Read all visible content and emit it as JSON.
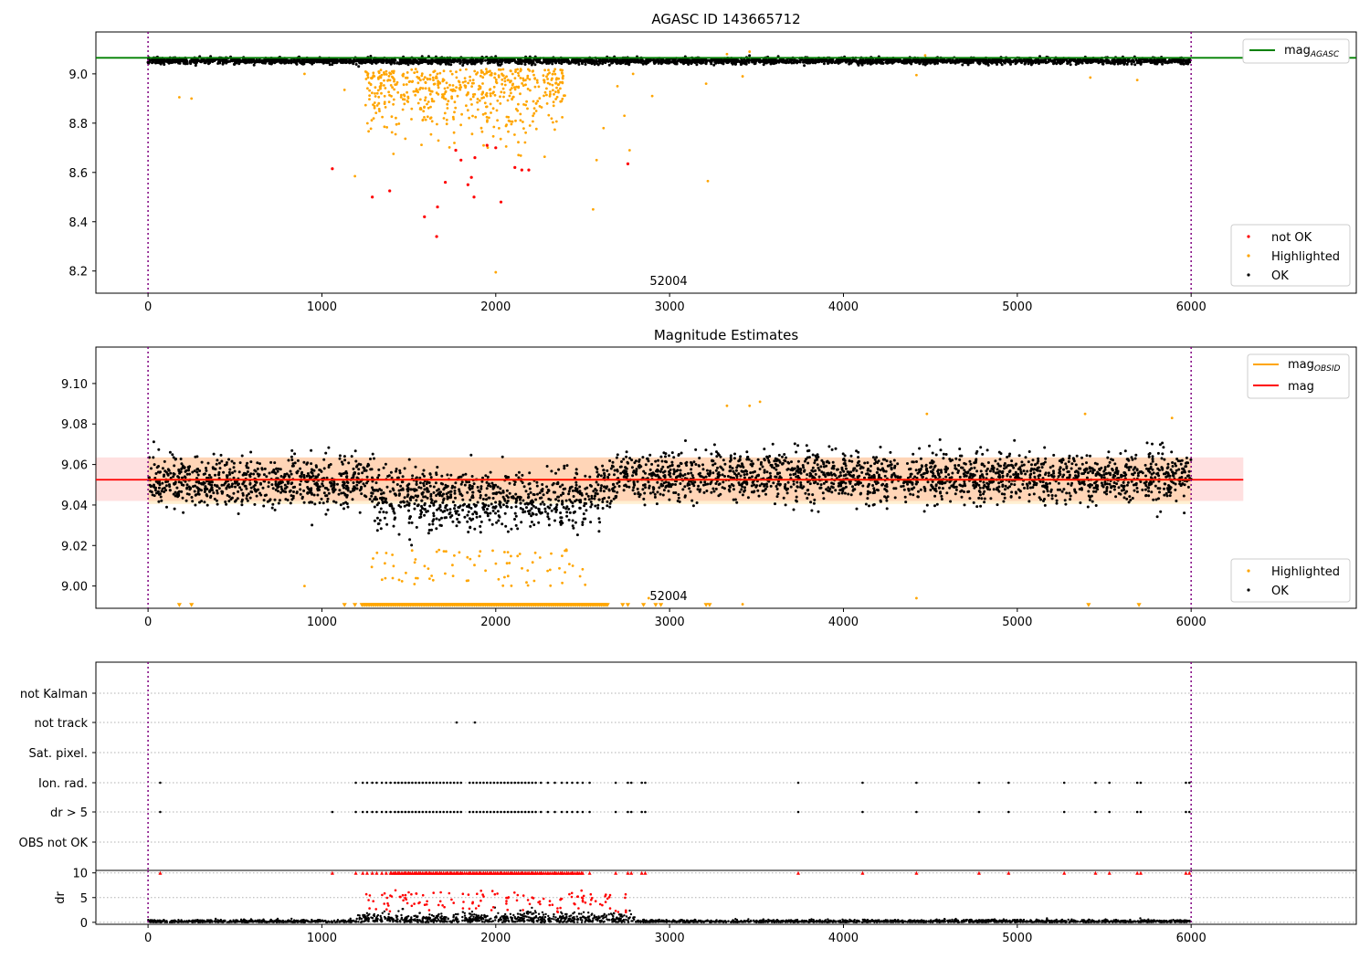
{
  "chart_data": [
    {
      "type": "scatter",
      "title": "AGASC ID 143665712",
      "xlim": [
        -300,
        6950
      ],
      "ylim": [
        8.11,
        9.17
      ],
      "xticks": [
        0,
        1000,
        2000,
        3000,
        4000,
        5000,
        6000
      ],
      "yticks": [
        8.2,
        8.4,
        8.6,
        8.8,
        9.0
      ],
      "ytick_labels": [
        "8.2",
        "8.4",
        "8.6",
        "8.8",
        "9.0"
      ],
      "grid": false,
      "obsid_label": "52004",
      "obsid_label_x": 3000,
      "obsid_boundaries": [
        0,
        6000
      ],
      "legend_upper": {
        "position": "upper-right",
        "entries": [
          {
            "label": "mag",
            "sub": "AGASC",
            "color": "#008000"
          }
        ]
      },
      "legend_lower": {
        "position": "lower-right",
        "entries": [
          {
            "label": "not OK",
            "color": "#ff0000"
          },
          {
            "label": "Highlighted",
            "color": "#ffa500"
          },
          {
            "label": "OK",
            "color": "#000000"
          }
        ]
      },
      "reference_lines": [
        {
          "name": "mag_AGASC",
          "y": 9.065,
          "x_range": [
            -300,
            6950
          ],
          "color": "#008000"
        }
      ],
      "series": [
        {
          "name": "OK",
          "color": "#000000",
          "description": "dense band of points, x 0-6000, y 9.03-9.08"
        },
        {
          "name": "Highlighted",
          "color": "#ffa500",
          "description": "scattered below band, mostly x 1200-2800, y 8.19-9.0"
        },
        {
          "name": "not OK",
          "color": "#ff0000",
          "points": [
            [
              1060,
              8.615
            ],
            [
              1290,
              8.5
            ],
            [
              1390,
              8.525
            ],
            [
              1590,
              8.42
            ],
            [
              1660,
              8.34
            ],
            [
              1665,
              8.46
            ],
            [
              1710,
              8.56
            ],
            [
              1770,
              8.69
            ],
            [
              1800,
              8.65
            ],
            [
              1840,
              8.55
            ],
            [
              1860,
              8.58
            ],
            [
              1875,
              8.5
            ],
            [
              1880,
              8.66
            ],
            [
              1950,
              8.71
            ],
            [
              2000,
              8.7
            ],
            [
              2030,
              8.48
            ],
            [
              2110,
              8.62
            ],
            [
              2150,
              8.61
            ],
            [
              2190,
              8.61
            ],
            [
              2760,
              8.635
            ]
          ]
        }
      ]
    },
    {
      "type": "scatter",
      "title": "Magnitude Estimates",
      "xlim": [
        -300,
        6950
      ],
      "ylim": [
        8.989,
        9.118
      ],
      "xticks": [
        0,
        1000,
        2000,
        3000,
        4000,
        5000,
        6000
      ],
      "yticks": [
        9.0,
        9.02,
        9.04,
        9.06,
        9.08,
        9.1
      ],
      "ytick_labels": [
        "9.00",
        "9.02",
        "9.04",
        "9.06",
        "9.08",
        "9.10"
      ],
      "grid": false,
      "obsid_label": "52004",
      "obsid_label_x": 3000,
      "obsid_boundaries": [
        0,
        6000
      ],
      "legend_upper": {
        "position": "upper-right",
        "entries": [
          {
            "label": "mag",
            "sub": "OBSID",
            "color": "#ffa500"
          },
          {
            "label": "mag",
            "sub": "",
            "color": "#ff0000"
          }
        ]
      },
      "legend_lower": {
        "position": "lower-right",
        "entries": [
          {
            "label": "Highlighted",
            "color": "#ffa500"
          },
          {
            "label": "OK",
            "color": "#000000"
          }
        ]
      },
      "reference_lines": [
        {
          "name": "mag_OBSID",
          "y": 9.0525,
          "x_range": [
            0,
            6000
          ],
          "color": "#ffa500",
          "band": [
            9.0405,
            9.0635
          ]
        },
        {
          "name": "mag",
          "y": 9.0525,
          "x_range": [
            -300,
            6300
          ],
          "color": "#ff0000",
          "band": [
            9.042,
            9.0635
          ]
        }
      ],
      "series": [
        {
          "name": "OK",
          "color": "#000000",
          "description": "dense scatter x 0-6000, y 9.02-9.08, mean ~9.052"
        },
        {
          "name": "Highlighted",
          "color": "#ffa500",
          "description": "points 9.0-9.09 mostly x 1300-2600, many clipped at bottom as triangles"
        }
      ]
    },
    {
      "type": "scatter",
      "title": "",
      "xlim": [
        -300,
        6950
      ],
      "xticks": [
        0,
        1000,
        2000,
        3000,
        4000,
        5000,
        6000
      ],
      "categories": [
        "not Kalman",
        "not track",
        "Sat. pixel.",
        "Ion. rad.",
        "dr > 5",
        "OBS not OK"
      ],
      "flag_points": {
        "not track": [
          1775,
          1880
        ],
        "Ion. rad.": [
          70,
          1195,
          1235,
          1260,
          1290,
          1315,
          1345,
          1370,
          1395,
          1420,
          1440,
          1460,
          1480,
          1500,
          1520,
          1540,
          1560,
          1580,
          1600,
          1620,
          1640,
          1660,
          1680,
          1700,
          1720,
          1740,
          1760,
          1780,
          1800,
          1850,
          1870,
          1890,
          1910,
          1930,
          1950,
          1970,
          1990,
          2010,
          2030,
          2050,
          2070,
          2090,
          2110,
          2130,
          2150,
          2170,
          2190,
          2210,
          2230,
          2260,
          2300,
          2340,
          2380,
          2410,
          2440,
          2470,
          2500,
          2540,
          2690,
          2760,
          2780,
          2840,
          2860,
          3740,
          4110,
          4420,
          4780,
          4950,
          5270,
          5450,
          5530,
          5690,
          5710,
          5970,
          5990
        ],
        "dr > 5": [
          70,
          1060,
          1195,
          1235,
          1260,
          1290,
          1315,
          1345,
          1370,
          1395,
          1420,
          1440,
          1460,
          1480,
          1500,
          1520,
          1540,
          1560,
          1580,
          1600,
          1620,
          1640,
          1660,
          1680,
          1700,
          1720,
          1740,
          1760,
          1780,
          1800,
          1850,
          1870,
          1890,
          1910,
          1930,
          1950,
          1970,
          1990,
          2010,
          2030,
          2050,
          2070,
          2090,
          2110,
          2130,
          2150,
          2170,
          2190,
          2210,
          2230,
          2260,
          2300,
          2340,
          2380,
          2410,
          2440,
          2470,
          2500,
          2540,
          2690,
          2760,
          2780,
          2840,
          2860,
          3740,
          4110,
          4420,
          4780,
          4950,
          5270,
          5450,
          5530,
          5690,
          5710,
          5970,
          5990
        ]
      },
      "obsid_boundaries": [
        0,
        6000
      ],
      "grid": "dotted horizontal"
    },
    {
      "type": "scatter",
      "title": "",
      "ylabel": "dr",
      "xlim": [
        -300,
        6950
      ],
      "ylim": [
        -0.4,
        10.5
      ],
      "xticks": [
        0,
        1000,
        2000,
        3000,
        4000,
        5000,
        6000
      ],
      "yticks": [
        0,
        5,
        10
      ],
      "ytick_labels": [
        "0",
        "5",
        "10"
      ],
      "obsid_boundaries": [
        0,
        6000
      ],
      "series": [
        {
          "name": "OK",
          "color": "#000000",
          "description": "dr near 0-1 across 0-6000, elevated to ~3 in 1200-2800"
        },
        {
          "name": "not OK",
          "color": "#ff0000",
          "description": "dr 2-7 in 1200-2800, clipped at 10 as triangles"
        }
      ]
    }
  ]
}
